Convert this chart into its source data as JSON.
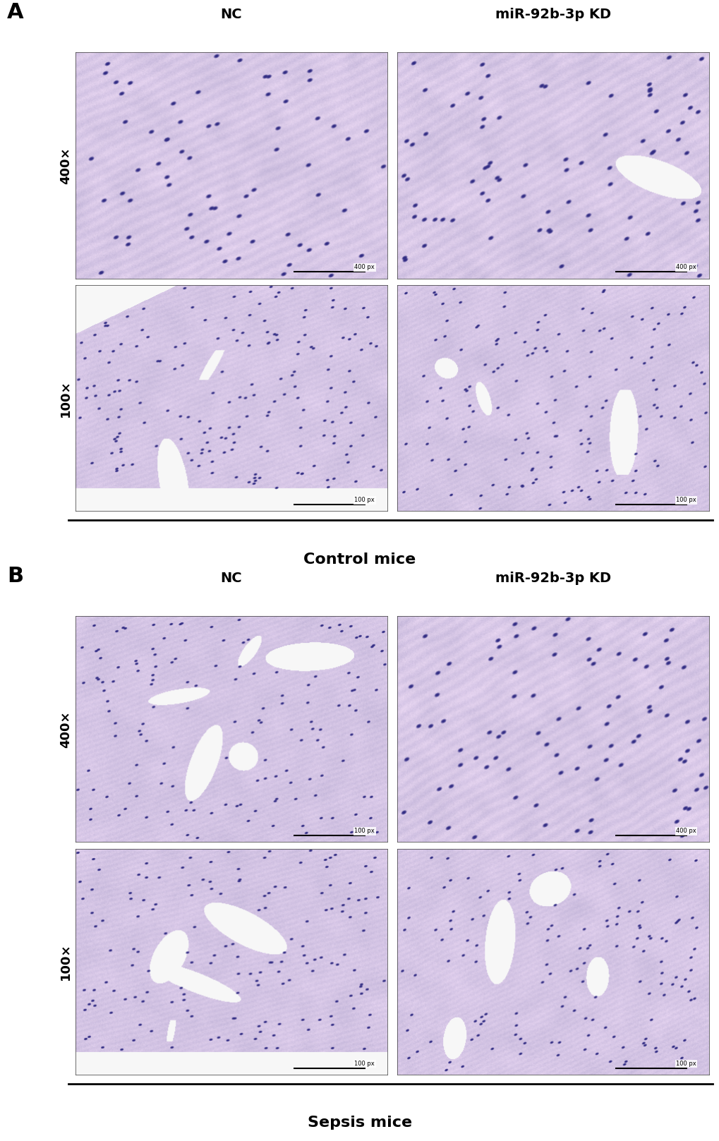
{
  "panel_A_label": "A",
  "panel_B_label": "B",
  "col_labels": [
    "NC",
    "miR-92b-3p KD"
  ],
  "row_labels_A": [
    "400×",
    "100×"
  ],
  "row_labels_B": [
    "400×",
    "100×"
  ],
  "bottom_label_A": "Control mice",
  "bottom_label_B": "Sepsis mice",
  "bg_color": "#ffffff",
  "figsize": [
    10.2,
    16.17
  ],
  "dpi": 100
}
